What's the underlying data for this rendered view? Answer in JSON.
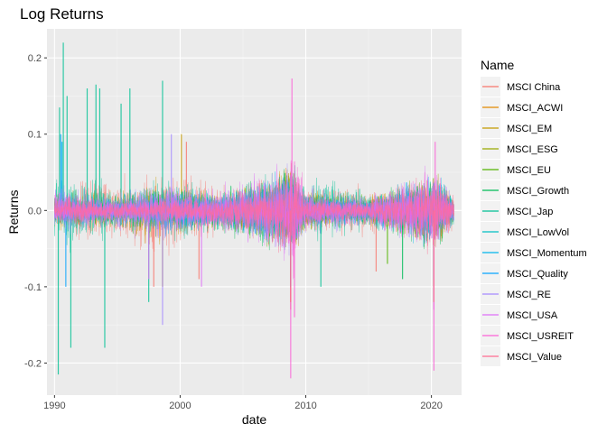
{
  "chart_data": {
    "type": "line",
    "title": "Log Returns",
    "xlabel": "date",
    "ylabel": "Returns",
    "xlim": [
      1989.4,
      2022.4
    ],
    "ylim": [
      -0.242,
      0.238
    ],
    "x_ticks": [
      1990,
      2000,
      2010,
      2020
    ],
    "x_tick_labels": [
      "1990",
      "2000",
      "2010",
      "2020"
    ],
    "y_ticks": [
      -0.2,
      -0.1,
      0.0,
      0.1,
      0.2
    ],
    "y_tick_labels": [
      "-0.2",
      "-0.1",
      "0.0",
      "0.1",
      "0.2"
    ],
    "grid": true,
    "legend_title": "Name",
    "legend_position": "right",
    "series": [
      {
        "name": "MSCI China",
        "color": "#F8766D",
        "envelope": [
          [
            1990,
            0.005
          ],
          [
            1993,
            0.08
          ],
          [
            1996,
            0.06
          ],
          [
            1998,
            0.09
          ],
          [
            2000,
            0.08
          ],
          [
            2004,
            0.05
          ],
          [
            2007,
            0.06
          ],
          [
            2008.9,
            0.09
          ],
          [
            2010,
            0.05
          ],
          [
            2015,
            0.05
          ],
          [
            2020,
            0.05
          ],
          [
            2021.8,
            0.04
          ]
        ],
        "spikes": [
          [
            1997.9,
            -0.1
          ],
          [
            2000.5,
            0.09
          ],
          [
            2001.5,
            -0.09
          ],
          [
            2008.8,
            -0.13
          ],
          [
            2015.6,
            -0.08
          ]
        ]
      },
      {
        "name": "MSCI_ACWI",
        "color": "#E38900",
        "envelope": [
          [
            1990,
            0.03
          ],
          [
            1995,
            0.02
          ],
          [
            2000,
            0.03
          ],
          [
            2004,
            0.02
          ],
          [
            2008.9,
            0.09
          ],
          [
            2010,
            0.03
          ],
          [
            2015,
            0.02
          ],
          [
            2020.2,
            0.08
          ],
          [
            2021.8,
            0.02
          ]
        ],
        "spikes": [
          [
            2008.8,
            -0.1
          ],
          [
            2020.2,
            -0.1
          ]
        ]
      },
      {
        "name": "MSCI_EM",
        "color": "#C49A00",
        "envelope": [
          [
            1990,
            0.04
          ],
          [
            1995,
            0.04
          ],
          [
            1998,
            0.07
          ],
          [
            2000,
            0.05
          ],
          [
            2004,
            0.03
          ],
          [
            2008.9,
            0.1
          ],
          [
            2010,
            0.04
          ],
          [
            2015,
            0.03
          ],
          [
            2020.2,
            0.06
          ],
          [
            2021.8,
            0.03
          ]
        ],
        "spikes": [
          [
            1998.6,
            -0.1
          ],
          [
            2000.1,
            0.1
          ],
          [
            2008.8,
            -0.12
          ]
        ]
      },
      {
        "name": "MSCI_ESG",
        "color": "#99A800",
        "envelope": [
          [
            2007,
            0.03
          ],
          [
            2008.9,
            0.09
          ],
          [
            2010,
            0.03
          ],
          [
            2015,
            0.02
          ],
          [
            2020.2,
            0.08
          ],
          [
            2021.8,
            0.02
          ]
        ],
        "spikes": [
          [
            2008.8,
            -0.09
          ]
        ]
      },
      {
        "name": "MSCI_EU",
        "color": "#53B400",
        "envelope": [
          [
            1990,
            0.03
          ],
          [
            1995,
            0.02
          ],
          [
            2000,
            0.04
          ],
          [
            2003,
            0.03
          ],
          [
            2008.9,
            0.09
          ],
          [
            2010,
            0.04
          ],
          [
            2012,
            0.03
          ],
          [
            2016,
            0.03
          ],
          [
            2020.2,
            0.08
          ],
          [
            2021.8,
            0.02
          ]
        ],
        "spikes": [
          [
            2016.5,
            -0.07
          ],
          [
            2020.2,
            -0.12
          ]
        ]
      },
      {
        "name": "MSCI_Growth",
        "color": "#00BC56",
        "envelope": [
          [
            1990,
            0.03
          ],
          [
            1995,
            0.03
          ],
          [
            2000,
            0.05
          ],
          [
            2002,
            0.04
          ],
          [
            2008.9,
            0.09
          ],
          [
            2010,
            0.03
          ],
          [
            2015,
            0.03
          ],
          [
            2020.2,
            0.08
          ],
          [
            2021.8,
            0.03
          ]
        ],
        "spikes": [
          [
            2017.7,
            -0.09
          ]
        ]
      },
      {
        "name": "MSCI_Jap",
        "color": "#00C094",
        "envelope": [
          [
            1990,
            0.06
          ],
          [
            1991,
            0.08
          ],
          [
            1993,
            0.06
          ],
          [
            1996,
            0.05
          ],
          [
            1998,
            0.06
          ],
          [
            2000,
            0.06
          ],
          [
            2004,
            0.04
          ],
          [
            2008.9,
            0.09
          ],
          [
            2010,
            0.05
          ],
          [
            2011.2,
            0.07
          ],
          [
            2015,
            0.04
          ],
          [
            2020,
            0.04
          ],
          [
            2021.8,
            0.03
          ]
        ],
        "spikes": [
          [
            1990.3,
            -0.215
          ],
          [
            1990.7,
            0.22
          ],
          [
            1990.4,
            0.135
          ],
          [
            1991.0,
            0.15
          ],
          [
            1991.3,
            -0.18
          ],
          [
            1992.6,
            0.16
          ],
          [
            1993.3,
            0.165
          ],
          [
            1993.6,
            0.16
          ],
          [
            1994.0,
            -0.18
          ],
          [
            1995.3,
            0.14
          ],
          [
            1996.0,
            0.16
          ],
          [
            1997.5,
            -0.12
          ],
          [
            1998.6,
            0.17
          ],
          [
            2011.2,
            -0.1
          ]
        ]
      },
      {
        "name": "MSCI_LowVol",
        "color": "#00BFC4",
        "envelope": [
          [
            1990,
            0.02
          ],
          [
            1995,
            0.015
          ],
          [
            2000,
            0.02
          ],
          [
            2008.9,
            0.06
          ],
          [
            2010,
            0.02
          ],
          [
            2015,
            0.015
          ],
          [
            2020.2,
            0.07
          ],
          [
            2021.8,
            0.02
          ]
        ],
        "spikes": [
          [
            2020.2,
            -0.09
          ]
        ]
      },
      {
        "name": "MSCI_Momentum",
        "color": "#00B6EB",
        "envelope": [
          [
            1990,
            0.03
          ],
          [
            1995,
            0.02
          ],
          [
            2000,
            0.05
          ],
          [
            2003,
            0.03
          ],
          [
            2008.9,
            0.08
          ],
          [
            2010,
            0.03
          ],
          [
            2015,
            0.03
          ],
          [
            2020.2,
            0.08
          ],
          [
            2021.8,
            0.03
          ]
        ],
        "spikes": [
          [
            1990.6,
            0.09
          ],
          [
            2008.8,
            -0.1
          ]
        ]
      },
      {
        "name": "MSCI_Quality",
        "color": "#06A4FF",
        "envelope": [
          [
            1990,
            0.03
          ],
          [
            1995,
            0.02
          ],
          [
            2000,
            0.04
          ],
          [
            2003,
            0.03
          ],
          [
            2008.9,
            0.08
          ],
          [
            2010,
            0.03
          ],
          [
            2015,
            0.02
          ],
          [
            2020.2,
            0.08
          ],
          [
            2021.8,
            0.02
          ]
        ],
        "spikes": [
          [
            1990.5,
            0.1
          ],
          [
            1990.9,
            -0.1
          ]
        ]
      },
      {
        "name": "MSCI_RE",
        "color": "#A58AFF",
        "envelope": [
          [
            1990,
            0.05
          ],
          [
            1995,
            0.04
          ],
          [
            1998,
            0.06
          ],
          [
            2000,
            0.05
          ],
          [
            2003,
            0.03
          ],
          [
            2008.9,
            0.1
          ],
          [
            2010,
            0.05
          ],
          [
            2015,
            0.03
          ],
          [
            2020.2,
            0.08
          ],
          [
            2021.8,
            0.03
          ]
        ],
        "spikes": [
          [
            1998.6,
            -0.15
          ],
          [
            1999.3,
            0.1
          ]
        ]
      },
      {
        "name": "MSCI_USA",
        "color": "#DF70F8",
        "envelope": [
          [
            1990,
            0.03
          ],
          [
            1995,
            0.02
          ],
          [
            2000,
            0.05
          ],
          [
            2002,
            0.04
          ],
          [
            2008.9,
            0.1
          ],
          [
            2010,
            0.03
          ],
          [
            2015,
            0.03
          ],
          [
            2020.2,
            0.09
          ],
          [
            2021.8,
            0.02
          ]
        ],
        "spikes": [
          [
            1997.5,
            -0.09
          ],
          [
            2001.7,
            -0.1
          ],
          [
            2020.2,
            -0.13
          ]
        ]
      },
      {
        "name": "MSCI_USREIT",
        "color": "#FB61D7",
        "envelope": [
          [
            1990,
            0.04
          ],
          [
            1995,
            0.02
          ],
          [
            2000,
            0.03
          ],
          [
            2004,
            0.03
          ],
          [
            2007,
            0.04
          ],
          [
            2008.4,
            0.08
          ],
          [
            2008.9,
            0.17
          ],
          [
            2009.3,
            0.12
          ],
          [
            2010,
            0.05
          ],
          [
            2012,
            0.03
          ],
          [
            2015,
            0.02
          ],
          [
            2020.2,
            0.09
          ],
          [
            2021.8,
            0.02
          ]
        ],
        "spikes": [
          [
            2008.9,
            0.173
          ],
          [
            2008.8,
            -0.22
          ],
          [
            2009.1,
            -0.14
          ],
          [
            2020.2,
            -0.21
          ],
          [
            2020.3,
            0.09
          ]
        ]
      },
      {
        "name": "MSCI_Value",
        "color": "#FF6C91",
        "envelope": [
          [
            1990,
            0.03
          ],
          [
            1995,
            0.02
          ],
          [
            2000,
            0.03
          ],
          [
            2003,
            0.03
          ],
          [
            2008.9,
            0.09
          ],
          [
            2010,
            0.03
          ],
          [
            2015,
            0.02
          ],
          [
            2020.2,
            0.09
          ],
          [
            2021.8,
            0.03
          ]
        ],
        "spikes": [
          [
            2008.8,
            -0.12
          ],
          [
            2020.2,
            -0.12
          ]
        ]
      }
    ]
  }
}
